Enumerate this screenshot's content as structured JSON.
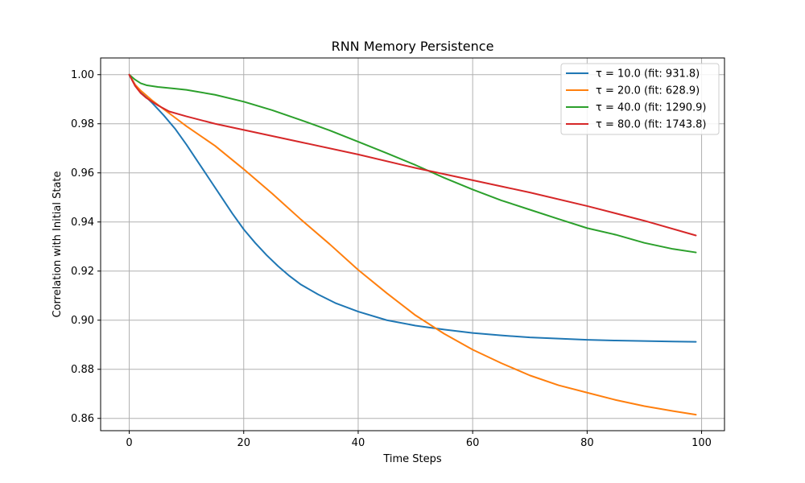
{
  "chart_data": {
    "type": "line",
    "title": "RNN Memory Persistence",
    "xlabel": "Time Steps",
    "ylabel": "Correlation with Initial State",
    "xlim": [
      -5,
      104
    ],
    "ylim": [
      0.855,
      1.0068
    ],
    "xticks": [
      0,
      20,
      40,
      60,
      80,
      100
    ],
    "yticks": [
      0.86,
      0.88,
      0.9,
      0.92,
      0.94,
      0.96,
      0.98,
      1.0
    ],
    "xtick_labels": [
      "0",
      "20",
      "40",
      "60",
      "80",
      "100"
    ],
    "ytick_labels": [
      "0.86",
      "0.88",
      "0.90",
      "0.92",
      "0.94",
      "0.96",
      "0.98",
      "1.00"
    ],
    "grid": true,
    "legend_position": "top-right",
    "series": [
      {
        "name": "τ = 10.0 (fit: 931.8)",
        "color": "#1f77b4",
        "x": [
          0,
          1,
          2,
          4,
          6,
          8,
          10,
          12,
          14,
          16,
          18,
          20,
          22,
          24,
          26,
          28,
          30,
          33,
          36,
          40,
          45,
          50,
          55,
          60,
          65,
          70,
          75,
          80,
          85,
          90,
          95,
          99
        ],
        "y": [
          1.0,
          0.996,
          0.993,
          0.9885,
          0.9835,
          0.978,
          0.9715,
          0.9645,
          0.9575,
          0.9505,
          0.9435,
          0.937,
          0.9315,
          0.9265,
          0.922,
          0.918,
          0.9145,
          0.9105,
          0.907,
          0.9035,
          0.9,
          0.8978,
          0.8962,
          0.8948,
          0.8938,
          0.893,
          0.8925,
          0.892,
          0.8917,
          0.8915,
          0.8913,
          0.8912
        ]
      },
      {
        "name": "τ = 20.0 (fit: 628.9)",
        "color": "#ff7f0e",
        "x": [
          0,
          1,
          2,
          4,
          6,
          8,
          10,
          15,
          20,
          25,
          30,
          35,
          40,
          45,
          50,
          55,
          60,
          65,
          70,
          75,
          80,
          85,
          90,
          95,
          99
        ],
        "y": [
          1.0,
          0.996,
          0.9935,
          0.9895,
          0.986,
          0.9825,
          0.979,
          0.971,
          0.9615,
          0.9515,
          0.941,
          0.931,
          0.9205,
          0.911,
          0.902,
          0.8945,
          0.888,
          0.8825,
          0.8775,
          0.8735,
          0.8705,
          0.8675,
          0.865,
          0.863,
          0.8615
        ]
      },
      {
        "name": "τ = 40.0 (fit: 1290.9)",
        "color": "#2ca02c",
        "x": [
          0,
          1,
          2,
          3,
          5,
          8,
          10,
          15,
          20,
          25,
          30,
          35,
          40,
          45,
          50,
          55,
          60,
          65,
          70,
          75,
          80,
          85,
          90,
          95,
          99
        ],
        "y": [
          1.0,
          0.998,
          0.9965,
          0.9957,
          0.995,
          0.9943,
          0.9938,
          0.9918,
          0.989,
          0.9855,
          0.9815,
          0.9773,
          0.9727,
          0.968,
          0.9632,
          0.958,
          0.9532,
          0.9488,
          0.945,
          0.9412,
          0.9375,
          0.9348,
          0.9315,
          0.929,
          0.9276
        ]
      },
      {
        "name": "τ = 80.0 (fit: 1743.8)",
        "color": "#d62728",
        "x": [
          0,
          1,
          2,
          3,
          5,
          7,
          10,
          15,
          20,
          25,
          30,
          40,
          50,
          60,
          65,
          70,
          80,
          90,
          99
        ],
        "y": [
          1.0,
          0.9955,
          0.9925,
          0.9905,
          0.9875,
          0.985,
          0.983,
          0.98,
          0.9775,
          0.975,
          0.9725,
          0.9675,
          0.962,
          0.957,
          0.9545,
          0.952,
          0.9465,
          0.9405,
          0.9345
        ]
      }
    ]
  }
}
